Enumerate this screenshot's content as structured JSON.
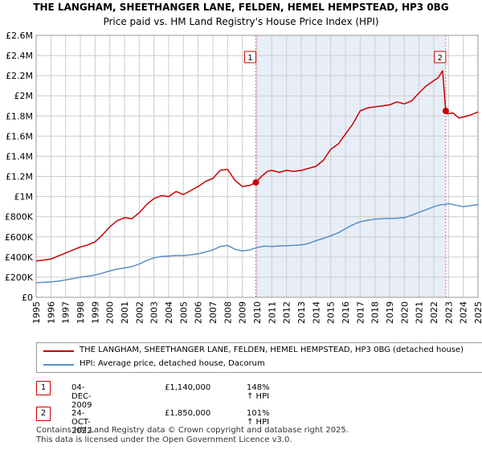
{
  "title": "THE LANGHAM, SHEETHANGER LANE, FELDEN, HEMEL HEMPSTEAD, HP3 0BG",
  "subtitle": "Price paid vs. HM Land Registry's House Price Index (HPI)",
  "colors": {
    "property": "#cc0000",
    "hpi": "#5b8fc7",
    "shade": "#e8eef8",
    "grid": "#cccccc",
    "marker_line": "#e06666"
  },
  "chart_data": {
    "type": "line",
    "ylim": [
      0,
      2600000
    ],
    "xlim": [
      1995,
      2025
    ],
    "y_ticks": [
      {
        "value": 0,
        "label": "£0"
      },
      {
        "value": 200000,
        "label": "£200K"
      },
      {
        "value": 400000,
        "label": "£400K"
      },
      {
        "value": 600000,
        "label": "£600K"
      },
      {
        "value": 800000,
        "label": "£800K"
      },
      {
        "value": 1000000,
        "label": "£1M"
      },
      {
        "value": 1200000,
        "label": "£1.2M"
      },
      {
        "value": 1400000,
        "label": "£1.4M"
      },
      {
        "value": 1600000,
        "label": "£1.6M"
      },
      {
        "value": 1800000,
        "label": "£1.8M"
      },
      {
        "value": 2000000,
        "label": "£2M"
      },
      {
        "value": 2200000,
        "label": "£2.2M"
      },
      {
        "value": 2400000,
        "label": "£2.4M"
      },
      {
        "value": 2600000,
        "label": "£2.6M"
      }
    ],
    "x_ticks": [
      "1995",
      "1996",
      "1997",
      "1998",
      "1999",
      "2000",
      "2001",
      "2002",
      "2003",
      "2004",
      "2005",
      "2006",
      "2007",
      "2008",
      "2009",
      "2010",
      "2011",
      "2012",
      "2013",
      "2014",
      "2015",
      "2016",
      "2017",
      "2018",
      "2019",
      "2020",
      "2021",
      "2022",
      "2023",
      "2024",
      "2025"
    ],
    "shaded_span": [
      2009.92,
      2022.81
    ],
    "series": [
      {
        "name": "THE LANGHAM, SHEETHANGER LANE, FELDEN, HEMEL HEMPSTEAD, HP3 0BG (detached house)",
        "color": "#cc0000",
        "x": [
          1995.0,
          1995.5,
          1996.0,
          1996.5,
          1997.0,
          1997.5,
          1998.0,
          1998.5,
          1999.0,
          1999.5,
          2000.0,
          2000.5,
          2001.0,
          2001.5,
          2002.0,
          2002.5,
          2003.0,
          2003.5,
          2004.0,
          2004.5,
          2005.0,
          2005.5,
          2006.0,
          2006.5,
          2007.0,
          2007.5,
          2008.0,
          2008.5,
          2009.0,
          2009.5,
          2009.92,
          2010.3,
          2010.7,
          2011.0,
          2011.5,
          2012.0,
          2012.5,
          2013.0,
          2013.5,
          2014.0,
          2014.5,
          2015.0,
          2015.5,
          2016.0,
          2016.5,
          2017.0,
          2017.5,
          2018.0,
          2018.5,
          2019.0,
          2019.5,
          2020.0,
          2020.5,
          2021.0,
          2021.5,
          2022.0,
          2022.3,
          2022.6,
          2022.81,
          2022.9,
          2023.3,
          2023.7,
          2024.0,
          2024.5,
          2025.0
        ],
        "values": [
          360000,
          370000,
          380000,
          410000,
          440000,
          470000,
          500000,
          520000,
          550000,
          620000,
          700000,
          760000,
          790000,
          780000,
          840000,
          920000,
          980000,
          1010000,
          1000000,
          1050000,
          1020000,
          1060000,
          1100000,
          1150000,
          1180000,
          1260000,
          1270000,
          1160000,
          1100000,
          1110000,
          1140000,
          1200000,
          1250000,
          1260000,
          1240000,
          1260000,
          1250000,
          1260000,
          1280000,
          1300000,
          1360000,
          1470000,
          1520000,
          1620000,
          1720000,
          1850000,
          1880000,
          1890000,
          1900000,
          1910000,
          1940000,
          1920000,
          1950000,
          2030000,
          2100000,
          2150000,
          2180000,
          2250000,
          1850000,
          1820000,
          1830000,
          1780000,
          1790000,
          1810000,
          1840000
        ],
        "marker_value": 1850000
      },
      {
        "name": "HPI: Average price, detached house, Dacorum",
        "color": "#5b8fc7",
        "x": [
          1995.0,
          1995.5,
          1996.0,
          1996.5,
          1997.0,
          1997.5,
          1998.0,
          1998.5,
          1999.0,
          1999.5,
          2000.0,
          2000.5,
          2001.0,
          2001.5,
          2002.0,
          2002.5,
          2003.0,
          2003.5,
          2004.0,
          2004.5,
          2005.0,
          2005.5,
          2006.0,
          2006.5,
          2007.0,
          2007.5,
          2008.0,
          2008.5,
          2009.0,
          2009.5,
          2010.0,
          2010.5,
          2011.0,
          2011.5,
          2012.0,
          2012.5,
          2013.0,
          2013.5,
          2014.0,
          2014.5,
          2015.0,
          2015.5,
          2016.0,
          2016.5,
          2017.0,
          2017.5,
          2018.0,
          2018.5,
          2019.0,
          2019.5,
          2020.0,
          2020.5,
          2021.0,
          2021.5,
          2022.0,
          2022.5,
          2022.81,
          2023.0,
          2023.5,
          2024.0,
          2024.5,
          2025.0
        ],
        "values": [
          145000,
          148000,
          152000,
          160000,
          172000,
          185000,
          200000,
          210000,
          222000,
          240000,
          262000,
          280000,
          292000,
          305000,
          330000,
          365000,
          392000,
          405000,
          410000,
          415000,
          415000,
          422000,
          432000,
          450000,
          470000,
          505000,
          515000,
          478000,
          460000,
          470000,
          495000,
          508000,
          505000,
          510000,
          512000,
          515000,
          520000,
          535000,
          562000,
          585000,
          610000,
          640000,
          680000,
          720000,
          750000,
          765000,
          775000,
          780000,
          782000,
          785000,
          790000,
          815000,
          845000,
          870000,
          900000,
          920000,
          920000,
          930000,
          915000,
          900000,
          910000,
          920000
        ]
      }
    ],
    "annotations": [
      {
        "label": "1",
        "x": 2009.92,
        "value": 1140000
      },
      {
        "label": "2",
        "x": 2022.81,
        "value": 1850000
      }
    ]
  },
  "legend": {
    "property_label": "THE LANGHAM, SHEETHANGER LANE, FELDEN, HEMEL HEMPSTEAD, HP3 0BG (detached house)",
    "hpi_label": "HPI: Average price, detached house, Dacorum"
  },
  "sales": [
    {
      "num": "1",
      "date": "04-DEC-2009",
      "price": "£1,140,000",
      "hpi": "148% ↑ HPI"
    },
    {
      "num": "2",
      "date": "24-OCT-2022",
      "price": "£1,850,000",
      "hpi": "101% ↑ HPI"
    }
  ],
  "footer": {
    "line1": "Contains HM Land Registry data © Crown copyright and database right 2025.",
    "line2": "This data is licensed under the Open Government Licence v3.0."
  }
}
